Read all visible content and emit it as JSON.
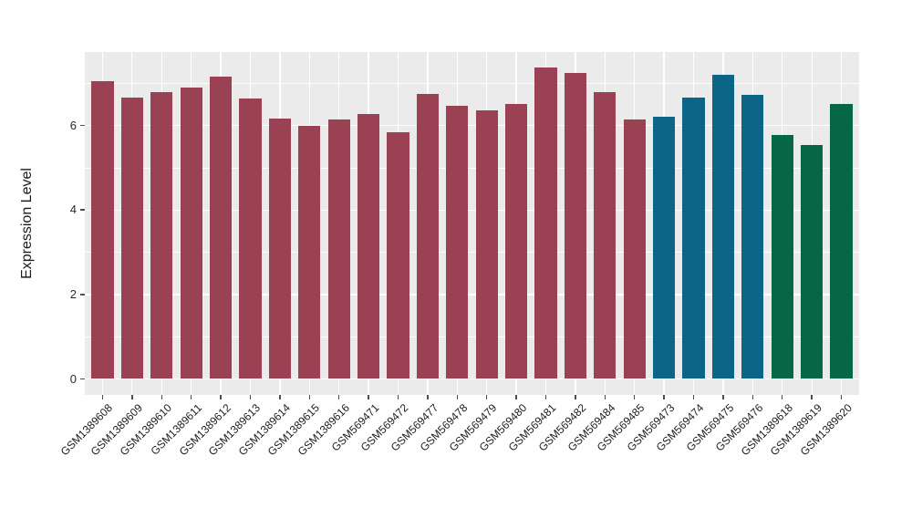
{
  "chart_data": {
    "type": "bar",
    "title": "",
    "xlabel": "",
    "ylabel": "Expression Level",
    "ylim": [
      0,
      7.74
    ],
    "yticks": [
      0,
      2,
      4,
      6
    ],
    "yminorticks": [
      1,
      3,
      5,
      7
    ],
    "grid": "on",
    "legend_position": "none",
    "panel_background": "#ebebeb",
    "gridline_color": "#ffffff",
    "tick_color": "#4d4d4d",
    "bar_groups": [
      {
        "name": "group-1",
        "color": "#9a4254"
      },
      {
        "name": "group-2",
        "color": "#0c6586"
      },
      {
        "name": "group-3",
        "color": "#056746"
      }
    ],
    "categories": [
      "GSM1389608",
      "GSM1389609",
      "GSM1389610",
      "GSM1389611",
      "GSM1389612",
      "GSM1389613",
      "GSM1389614",
      "GSM1389615",
      "GSM1389616",
      "GSM569471",
      "GSM569472",
      "GSM569477",
      "GSM569478",
      "GSM569479",
      "GSM569480",
      "GSM569481",
      "GSM569482",
      "GSM569484",
      "GSM569485",
      "GSM569473",
      "GSM569474",
      "GSM569475",
      "GSM569476",
      "GSM1389618",
      "GSM1389619",
      "GSM1389620"
    ],
    "values": [
      7.05,
      6.67,
      6.78,
      6.9,
      7.16,
      6.64,
      6.16,
      6.0,
      6.15,
      6.27,
      5.85,
      6.75,
      6.47,
      6.36,
      6.52,
      7.38,
      7.25,
      6.78,
      6.15,
      6.2,
      6.65,
      7.19,
      6.72,
      5.77,
      5.53,
      6.5
    ],
    "group_index": [
      0,
      0,
      0,
      0,
      0,
      0,
      0,
      0,
      0,
      0,
      0,
      0,
      0,
      0,
      0,
      0,
      0,
      0,
      0,
      1,
      1,
      1,
      1,
      2,
      2,
      2
    ]
  }
}
